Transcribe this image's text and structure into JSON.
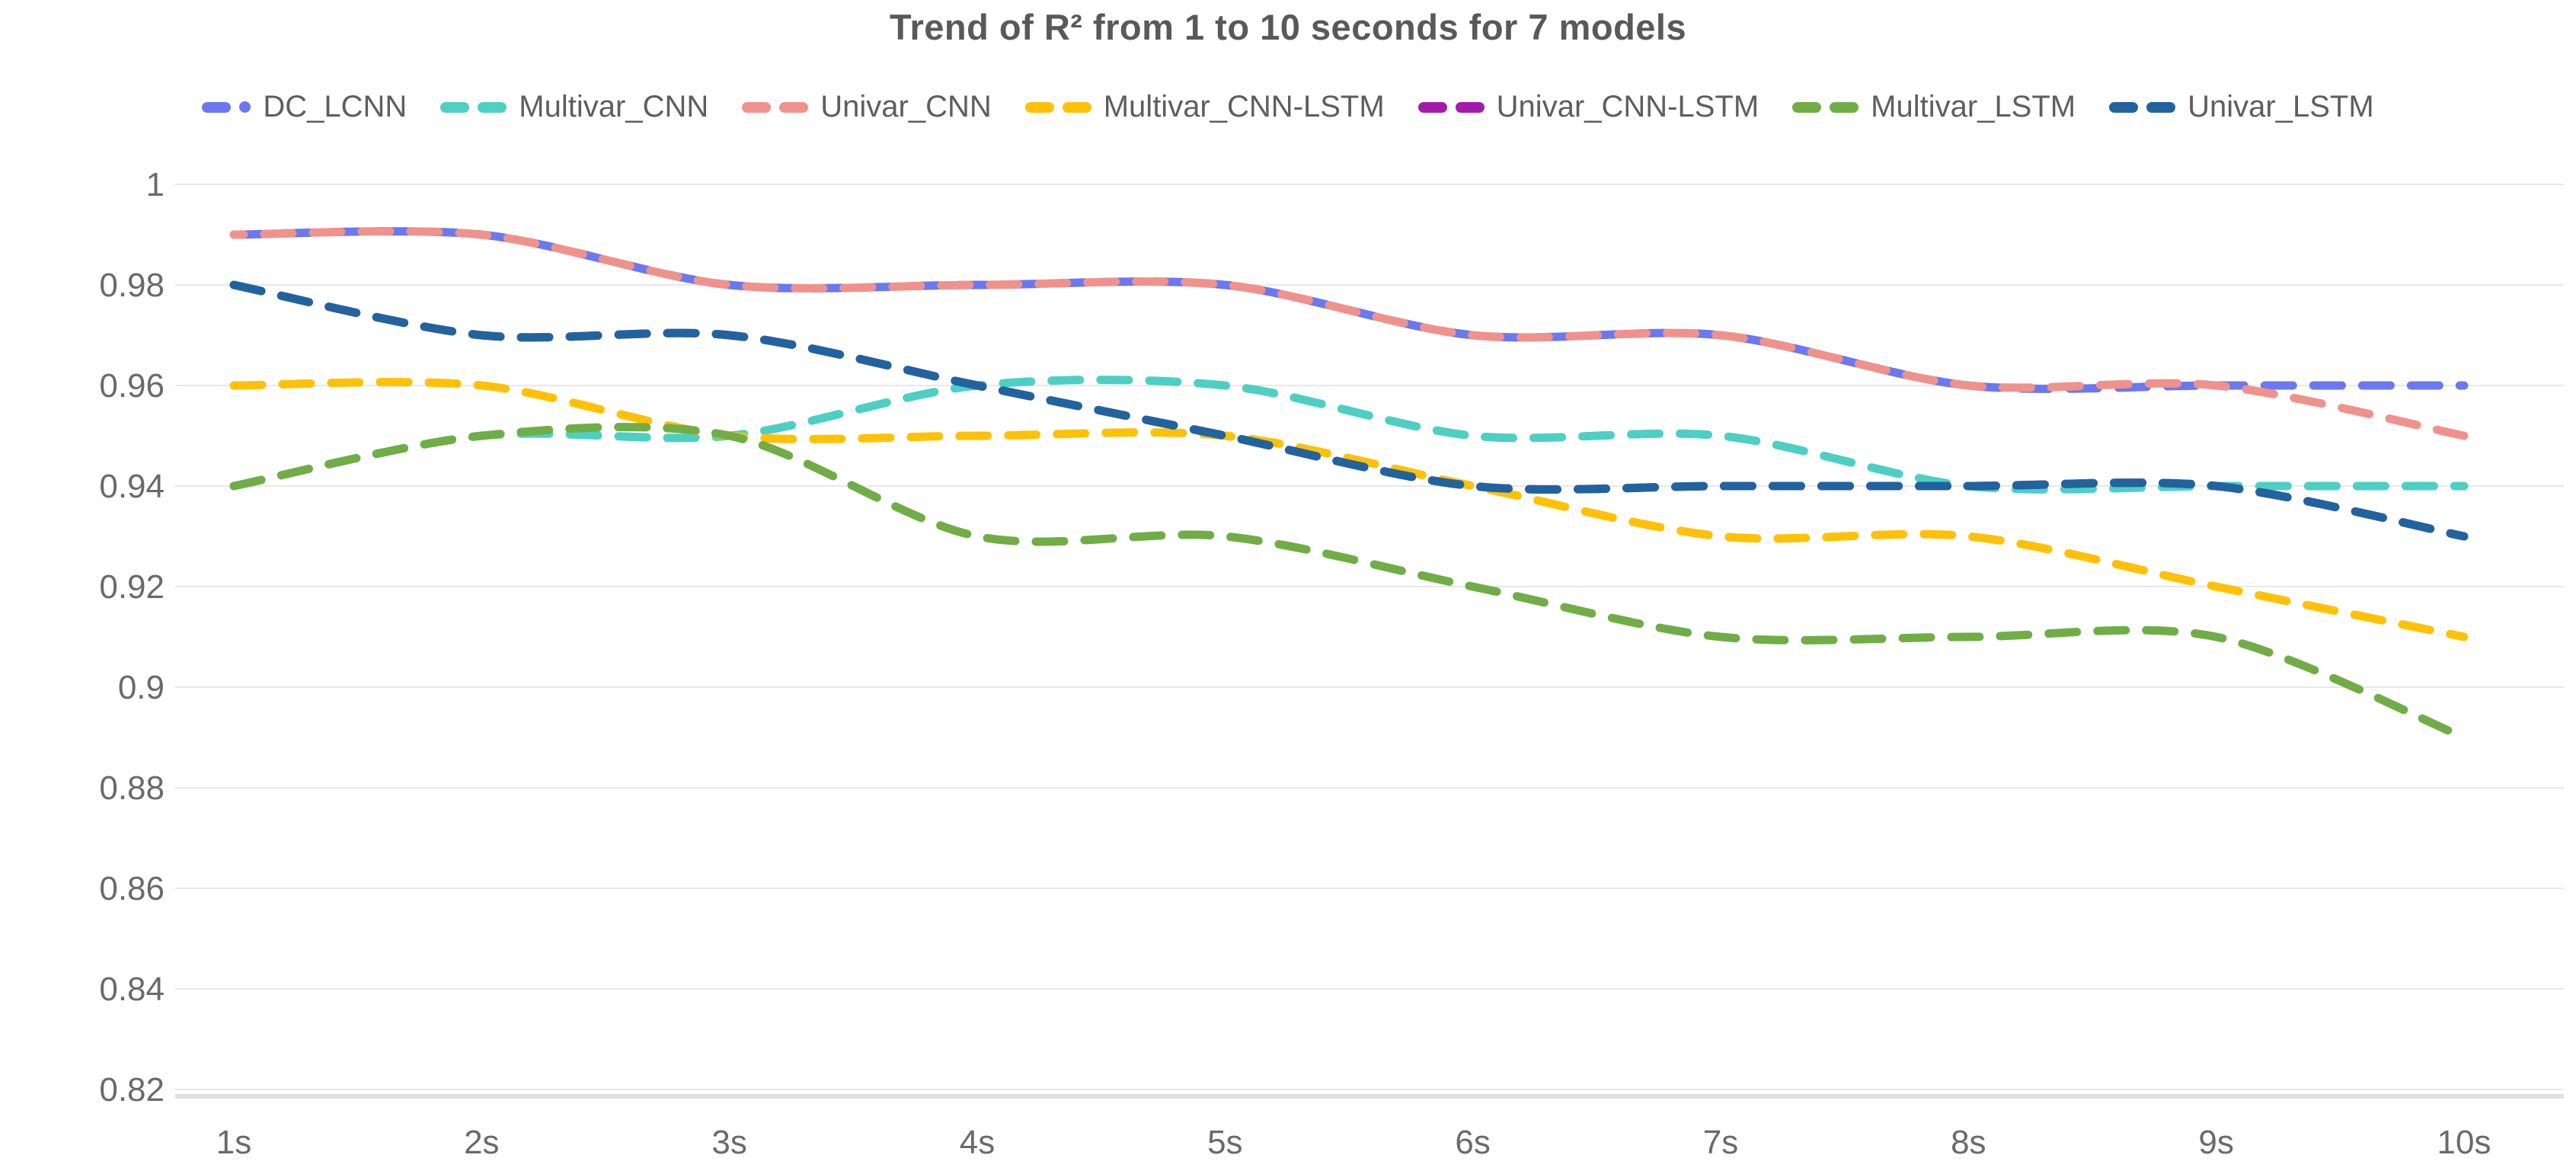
{
  "title": "Trend of R² from 1 to 10 seconds for 7 models",
  "legend": {
    "items": [
      "DC_LCNN",
      "Multivar_CNN",
      "Univar_CNN",
      "Multivar_CNN-LSTM",
      "Univar_CNN-LSTM",
      "Multivar_LSTM",
      "Univar_LSTM"
    ]
  },
  "chart_data": {
    "type": "line",
    "title": "Trend of R² from 1 to 10 seconds for 7 models",
    "categories": [
      "1s",
      "2s",
      "3s",
      "4s",
      "5s",
      "6s",
      "7s",
      "8s",
      "9s",
      "10s"
    ],
    "yticks": [
      "1",
      "0.98",
      "0.96",
      "0.94",
      "0.92",
      "0.9",
      "0.88",
      "0.86",
      "0.84",
      "0.82"
    ],
    "ylim": [
      0.82,
      1.0
    ],
    "ytick_step": 0.02,
    "grid": true,
    "legend_position": "top",
    "line_style": "dashed",
    "xlabel": "",
    "ylabel": "",
    "series": [
      {
        "name": "DC_LCNN",
        "color": "#6B78EF",
        "values": [
          0.99,
          0.99,
          0.98,
          0.98,
          0.98,
          0.97,
          0.97,
          0.96,
          0.96,
          0.96
        ]
      },
      {
        "name": "Multivar_CNN",
        "color": "#4DCFC4",
        "values": [
          0.94,
          0.95,
          0.95,
          0.96,
          0.96,
          0.95,
          0.95,
          0.94,
          0.94,
          0.94
        ]
      },
      {
        "name": "Univar_CNN",
        "color": "#F0928C",
        "values": [
          0.99,
          0.99,
          0.98,
          0.98,
          0.98,
          0.97,
          0.97,
          0.96,
          0.96,
          0.95
        ]
      },
      {
        "name": "Multivar_CNN-LSTM",
        "color": "#FFC107",
        "values": [
          0.96,
          0.96,
          0.95,
          0.95,
          0.95,
          0.94,
          0.93,
          0.93,
          0.92,
          0.91
        ]
      },
      {
        "name": "Univar_CNN-LSTM",
        "color": "#A21BAD",
        "values": [
          0.98,
          0.97,
          0.97,
          0.96,
          0.95,
          0.94,
          0.94,
          0.94,
          0.94,
          0.93
        ]
      },
      {
        "name": "Multivar_LSTM",
        "color": "#70AD47",
        "values": [
          0.94,
          0.95,
          0.95,
          0.93,
          0.93,
          0.92,
          0.91,
          0.91,
          0.91,
          0.89
        ]
      },
      {
        "name": "Univar_LSTM",
        "color": "#21639E",
        "values": [
          0.98,
          0.97,
          0.97,
          0.96,
          0.95,
          0.94,
          0.94,
          0.94,
          0.94,
          0.93
        ]
      }
    ]
  }
}
